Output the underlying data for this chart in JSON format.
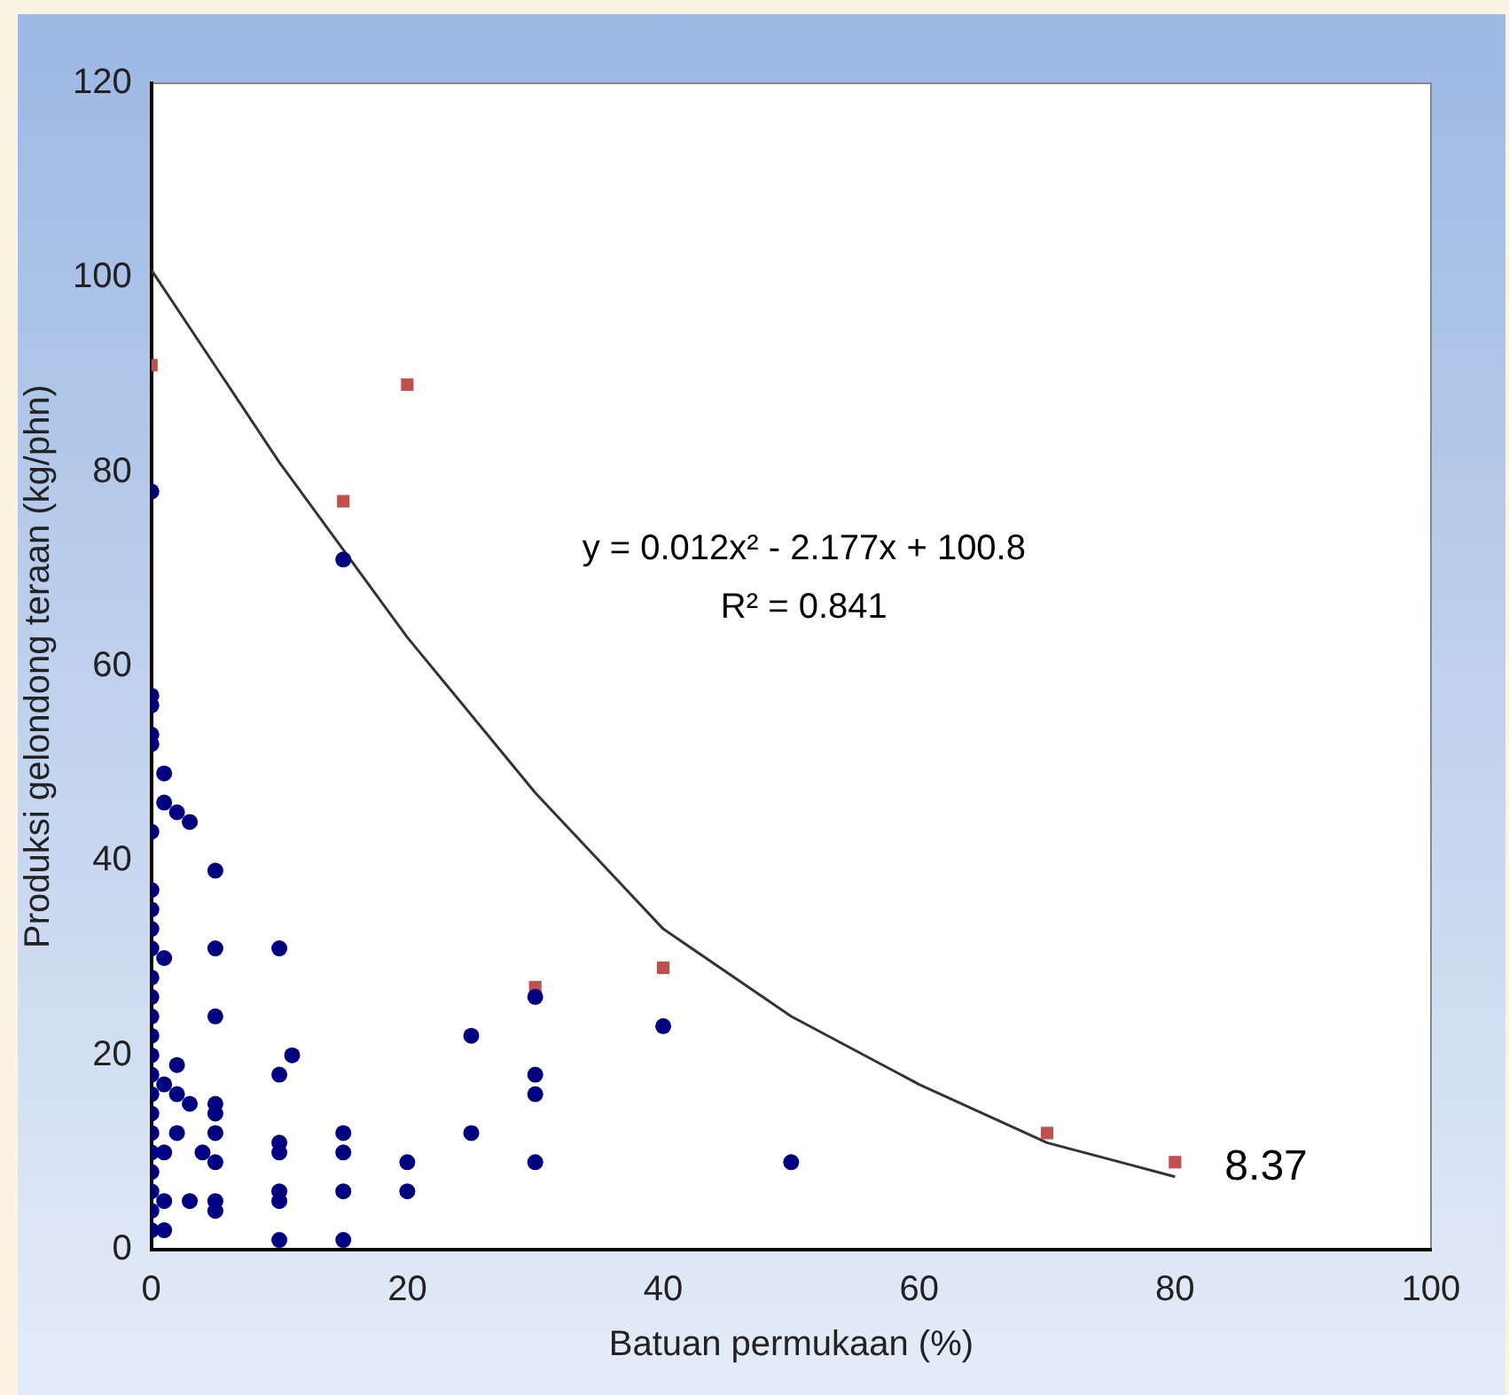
{
  "chart_data": {
    "type": "scatter",
    "xlabel": "Batuan permukaan (%)",
    "ylabel": "Produksi gelondong teraan (kg/phn)",
    "xlim": [
      0,
      100
    ],
    "xticks": [
      0,
      20,
      40,
      60,
      80,
      100
    ],
    "ylim": [
      0,
      120
    ],
    "yticks": [
      0,
      20,
      40,
      60,
      80,
      100,
      120
    ],
    "grid": false,
    "legend": false,
    "series": [
      {
        "color": "#000080",
        "marker": "circle",
        "x": [
          0,
          0,
          0,
          0,
          0,
          0,
          0,
          0,
          0,
          0,
          0,
          0,
          0,
          0,
          0,
          0,
          0,
          0,
          0,
          0,
          0,
          0,
          0,
          0,
          1,
          1,
          2,
          3,
          1,
          1,
          2,
          2,
          3,
          2,
          1,
          4,
          1,
          3,
          1,
          5,
          5,
          5,
          5,
          5,
          5,
          5,
          5,
          5,
          10,
          10,
          11,
          10,
          10,
          10,
          10,
          10,
          15,
          15,
          15,
          15,
          15,
          20,
          20,
          25,
          25,
          30,
          30,
          30,
          30,
          40,
          50
        ],
        "values": [
          78,
          57,
          56,
          53,
          52,
          43,
          37,
          35,
          33,
          31,
          28,
          26,
          24,
          22,
          20,
          18,
          16,
          14,
          12,
          10,
          8,
          6,
          4,
          2,
          49,
          46,
          45,
          44,
          30,
          17,
          19,
          16,
          15,
          12,
          10,
          10,
          5,
          5,
          2,
          39,
          31,
          24,
          15,
          14,
          12,
          9,
          5,
          4,
          31,
          18,
          20,
          11,
          10,
          6,
          5,
          1,
          71,
          12,
          10,
          6,
          1,
          9,
          6,
          22,
          12,
          26,
          18,
          16,
          9,
          23,
          9
        ]
      },
      {
        "color": "#c0504d",
        "marker": "square",
        "x": [
          0,
          15,
          20,
          30,
          40,
          70,
          80
        ],
        "values": [
          91,
          77,
          89,
          27,
          29,
          12,
          9
        ]
      },
      {
        "type": "line",
        "color": "#333333",
        "marker": "none",
        "x": [
          0,
          10,
          20,
          30,
          40,
          50,
          60,
          70,
          80
        ],
        "values": [
          100.8,
          81,
          63,
          47,
          33,
          24,
          17,
          11,
          7.5
        ]
      }
    ],
    "annotations": [
      "y = 0.012x² - 2.177x + 100.8",
      "R² = 0.841",
      {
        "text": "8.37",
        "x": 80,
        "y": 8.37
      }
    ]
  }
}
